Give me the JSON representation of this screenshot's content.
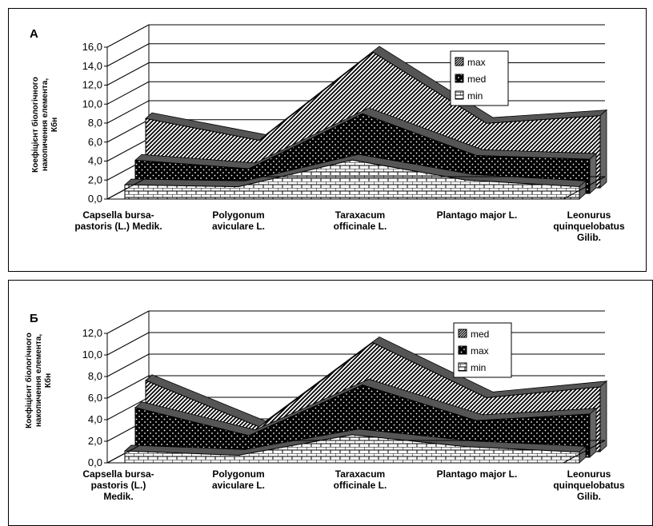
{
  "chart_data": [
    {
      "type": "area",
      "panel_label": "А",
      "title": "",
      "ylabel_lines": [
        "Коефіцієнт біологічного",
        "накопичення елемента,",
        "Кбн"
      ],
      "categories": [
        [
          "Capsella bursa-",
          "pastoris (L.) Medik."
        ],
        [
          "Polygonum",
          "aviculare L."
        ],
        [
          "Taraxacum",
          "officinale L."
        ],
        [
          "Plantago major L."
        ],
        [
          "Leonurus",
          "quinquelobatus",
          "Gilib."
        ]
      ],
      "ylim": [
        0,
        16
      ],
      "yticks": [
        "0,0",
        "2,0",
        "4,0",
        "6,0",
        "8,0",
        "10,0",
        "12,0",
        "14,0",
        "16,0"
      ],
      "grid": true,
      "legend_position": "right",
      "series": [
        {
          "name": "max",
          "values": [
            7.3,
            5.0,
            14.3,
            6.8,
            7.6
          ],
          "pattern": "hatch"
        },
        {
          "name": "med",
          "values": [
            3.5,
            2.6,
            8.4,
            4.0,
            3.6
          ],
          "pattern": "dots"
        },
        {
          "name": "min",
          "values": [
            1.5,
            1.3,
            4.1,
            2.0,
            1.3
          ],
          "pattern": "brick"
        }
      ]
    },
    {
      "type": "area",
      "panel_label": "Б",
      "title": "",
      "ylabel_lines": [
        "Коефіцієнт біологічного",
        "накопичення елемента,",
        "Кбн"
      ],
      "categories": [
        [
          "Capsella bursa-",
          "pastoris (L.)",
          "Medik."
        ],
        [
          "Polygonum",
          "aviculare L."
        ],
        [
          "Taraxacum",
          "officinale L."
        ],
        [
          "Plantago major L."
        ],
        [
          "Leonurus",
          "quinquelobatus",
          "Gilib."
        ]
      ],
      "ylim": [
        0,
        12
      ],
      "yticks": [
        "0,0",
        "2,0",
        "4,0",
        "6,0",
        "8,0",
        "10,0",
        "12,0"
      ],
      "grid": true,
      "legend_position": "right",
      "series": [
        {
          "name": "med",
          "values": [
            6.6,
            2.3,
            10.1,
            5.0,
            6.0
          ],
          "pattern": "hatch"
        },
        {
          "name": "max",
          "values": [
            4.6,
            2.0,
            6.7,
            3.4,
            4.0
          ],
          "pattern": "dots"
        },
        {
          "name": "min",
          "values": [
            1.1,
            0.7,
            2.6,
            1.5,
            1.0
          ],
          "pattern": "brick"
        }
      ]
    }
  ]
}
